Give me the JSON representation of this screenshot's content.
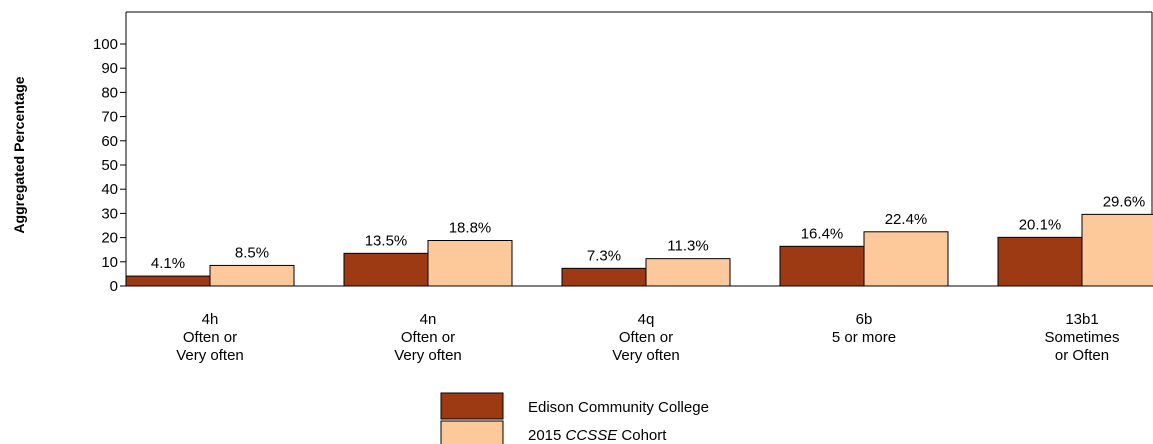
{
  "chart_data": {
    "type": "bar",
    "ylabel": "Aggregated Percentage",
    "ylim": [
      0,
      100
    ],
    "yticks": [
      0,
      10,
      20,
      30,
      40,
      50,
      60,
      70,
      80,
      90,
      100
    ],
    "categories": [
      [
        "4h",
        "Often or",
        "Very often"
      ],
      [
        "4n",
        "Often or",
        "Very often"
      ],
      [
        "4q",
        "Often or",
        "Very often"
      ],
      [
        "6b",
        "5 or more"
      ],
      [
        "13b1",
        "Sometimes",
        "or Often"
      ]
    ],
    "series": [
      {
        "name": "Edison Community College",
        "color": "#9e3a13",
        "values": [
          4.1,
          13.5,
          7.3,
          16.4,
          20.1
        ],
        "labels": [
          "4.1%",
          "13.5%",
          "7.3%",
          "16.4%",
          "20.1%"
        ]
      },
      {
        "name": "2015 CCSSE Cohort",
        "name_parts": [
          "2015 ",
          "CCSSE",
          " Cohort"
        ],
        "color": "#fdc99b",
        "values": [
          8.5,
          18.8,
          11.3,
          22.4,
          29.6
        ],
        "labels": [
          "8.5%",
          "18.8%",
          "11.3%",
          "22.4%",
          "29.6%"
        ]
      }
    ],
    "grid": false,
    "legend_position": "bottom-center"
  }
}
